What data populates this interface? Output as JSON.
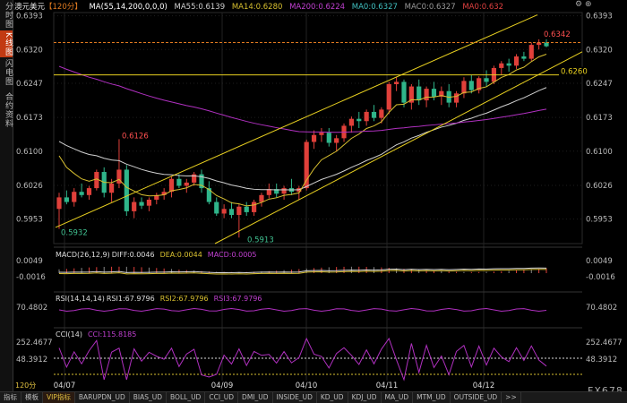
{
  "sidebar": {
    "tabs": [
      {
        "label": "分时图",
        "active": false
      },
      {
        "label": "K线图",
        "active": true
      },
      {
        "label": "闪电图",
        "active": false
      },
      {
        "label": "合约资料",
        "active": false
      }
    ]
  },
  "header": {
    "symbol": "澳元美元",
    "period": "【120分】",
    "ma_params": "MA(55,14,200,0,0,0)",
    "ma55": "MA55:0.6139",
    "ma14": "MA14:0.6280",
    "ma200": "MA200:0.6224",
    "ma0a": "MA0:0.6327",
    "ma0b": "MAC0:0.6327",
    "ma0c": "MA0:0.632"
  },
  "colors": {
    "up": "#e0403a",
    "down": "#2fb58a",
    "ma55": "#d0d0d0",
    "ma14": "#d8c030",
    "ma200": "#b030c0",
    "trend": "#e8d020",
    "dash": "#e07a20"
  },
  "price_axis": {
    "ticks": [
      "0.6393",
      "0.6320",
      "0.6247",
      "0.6173",
      "0.6100",
      "0.6026",
      "0.5953"
    ]
  },
  "annotations": {
    "high_label": "0.6342",
    "level_label": "0.6260",
    "peak_label": "0.6126",
    "low1_label": "0.5932",
    "low2_label": "0.5913"
  },
  "macd": {
    "label": "MACD(26,12,9)",
    "diff": "DIFF:0.0046",
    "dea": "DEA:0.0044",
    "macd": "MACD:0.0005",
    "axis_top": "0.0049",
    "axis_bottom": "-0.0016"
  },
  "rsi": {
    "label": "RSI(14,14,14)",
    "rsi1": "RSI1:67.9796",
    "rsi2": "RSI2:67.9796",
    "rsi3": "RSI3:67.9796",
    "axis": "70.4802"
  },
  "cci": {
    "label": "CCI(14)",
    "value": "CCI:115.8185",
    "axis_top": "252.4677",
    "axis_mid": "48.3912"
  },
  "dates": [
    "04/07",
    "04/09",
    "04/10",
    "04/11",
    "04/12"
  ],
  "timeframe": "120分",
  "watermark": "FX678",
  "bottom_tabs": [
    "指标",
    "模板",
    "VIP指标",
    "BARUPDN_UD",
    "BIAS_UD",
    "BOLL_UD",
    "CCI_UD",
    "DMI_UD",
    "INSIDE_UD",
    "KD_UD",
    "KDJ_UD",
    "MA_UD",
    "MTM_UD",
    "OUTSIDE_UD",
    ">>"
  ],
  "chart_data": {
    "type": "candlestick",
    "y_range": [
      0.59,
      0.64
    ],
    "candles": [
      [
        0.5975,
        0.601,
        0.5932,
        0.6
      ],
      [
        0.6,
        0.6015,
        0.5985,
        0.599
      ],
      [
        0.599,
        0.602,
        0.598,
        0.6012
      ],
      [
        0.6012,
        0.603,
        0.6,
        0.6005
      ],
      [
        0.6005,
        0.6025,
        0.5995,
        0.602
      ],
      [
        0.602,
        0.606,
        0.6015,
        0.6055
      ],
      [
        0.6055,
        0.6065,
        0.6,
        0.601
      ],
      [
        0.601,
        0.604,
        0.599,
        0.603
      ],
      [
        0.603,
        0.6126,
        0.602,
        0.606
      ],
      [
        0.606,
        0.607,
        0.596,
        0.597
      ],
      [
        0.597,
        0.6,
        0.5955,
        0.599
      ],
      [
        0.599,
        0.6,
        0.5975,
        0.5982
      ],
      [
        0.5982,
        0.6,
        0.597,
        0.5995
      ],
      [
        0.5995,
        0.601,
        0.5985,
        0.6005
      ],
      [
        0.6005,
        0.602,
        0.5995,
        0.6012
      ],
      [
        0.6012,
        0.6045,
        0.6,
        0.604
      ],
      [
        0.604,
        0.605,
        0.602,
        0.6025
      ],
      [
        0.6025,
        0.604,
        0.601,
        0.6032
      ],
      [
        0.6032,
        0.6055,
        0.6025,
        0.605
      ],
      [
        0.605,
        0.606,
        0.601,
        0.602
      ],
      [
        0.602,
        0.6035,
        0.5985,
        0.599
      ],
      [
        0.599,
        0.6,
        0.596,
        0.5965
      ],
      [
        0.5965,
        0.5985,
        0.5955,
        0.5975
      ],
      [
        0.5975,
        0.599,
        0.5955,
        0.5962
      ],
      [
        0.5962,
        0.5985,
        0.5913,
        0.598
      ],
      [
        0.598,
        0.599,
        0.596,
        0.5968
      ],
      [
        0.5968,
        0.5995,
        0.596,
        0.599
      ],
      [
        0.599,
        0.601,
        0.598,
        0.6005
      ],
      [
        0.6005,
        0.603,
        0.5998,
        0.6018
      ],
      [
        0.6018,
        0.603,
        0.6,
        0.6008
      ],
      [
        0.6008,
        0.6025,
        0.5995,
        0.602
      ],
      [
        0.602,
        0.604,
        0.6005,
        0.6012
      ],
      [
        0.6012,
        0.6025,
        0.5995,
        0.602
      ],
      [
        0.602,
        0.6125,
        0.6015,
        0.612
      ],
      [
        0.612,
        0.6145,
        0.6105,
        0.6135
      ],
      [
        0.6135,
        0.615,
        0.612,
        0.614
      ],
      [
        0.614,
        0.615,
        0.611,
        0.6118
      ],
      [
        0.6118,
        0.6135,
        0.61,
        0.6128
      ],
      [
        0.6128,
        0.616,
        0.612,
        0.6155
      ],
      [
        0.6155,
        0.6175,
        0.614,
        0.617
      ],
      [
        0.617,
        0.6185,
        0.615,
        0.6165
      ],
      [
        0.6165,
        0.619,
        0.6155,
        0.6185
      ],
      [
        0.6185,
        0.62,
        0.6165,
        0.6172
      ],
      [
        0.6172,
        0.6195,
        0.616,
        0.619
      ],
      [
        0.619,
        0.625,
        0.618,
        0.6245
      ],
      [
        0.6245,
        0.626,
        0.623,
        0.625
      ],
      [
        0.625,
        0.6255,
        0.6195,
        0.6205
      ],
      [
        0.6205,
        0.6245,
        0.619,
        0.624
      ],
      [
        0.624,
        0.6255,
        0.62,
        0.621
      ],
      [
        0.621,
        0.624,
        0.6195,
        0.6235
      ],
      [
        0.6235,
        0.625,
        0.621,
        0.6218
      ],
      [
        0.6218,
        0.624,
        0.62,
        0.623
      ],
      [
        0.623,
        0.6245,
        0.6195,
        0.6205
      ],
      [
        0.6205,
        0.623,
        0.6195,
        0.6225
      ],
      [
        0.6225,
        0.626,
        0.6215,
        0.6252
      ],
      [
        0.6252,
        0.6265,
        0.6225,
        0.6232
      ],
      [
        0.6232,
        0.6262,
        0.6225,
        0.6258
      ],
      [
        0.6258,
        0.6275,
        0.624,
        0.625
      ],
      [
        0.625,
        0.6285,
        0.6245,
        0.628
      ],
      [
        0.628,
        0.6295,
        0.6265,
        0.629
      ],
      [
        0.629,
        0.63,
        0.6272,
        0.6285
      ],
      [
        0.6285,
        0.631,
        0.6278,
        0.6305
      ],
      [
        0.6305,
        0.6315,
        0.6295,
        0.63
      ],
      [
        0.63,
        0.6335,
        0.6295,
        0.633
      ],
      [
        0.633,
        0.6342,
        0.632,
        0.6335
      ],
      [
        0.6335,
        0.6342,
        0.6325,
        0.6327
      ]
    ]
  }
}
